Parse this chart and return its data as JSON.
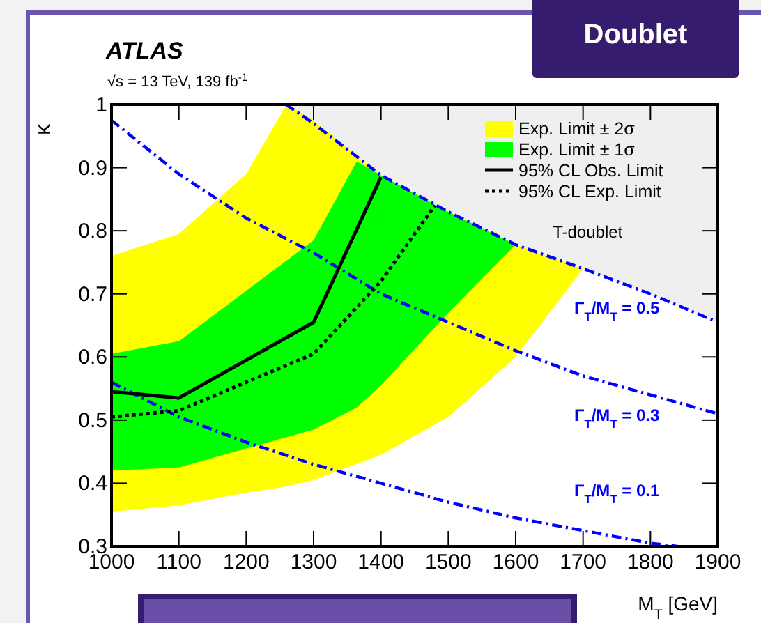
{
  "chart_data": {
    "type": "line",
    "title": "ATLAS",
    "subtitle": "√s = 13 TeV, 139 fb$^{-1}$",
    "xlabel": "M$_{T}$ [GeV]",
    "ylabel": "κ",
    "xlim": [
      1000,
      1900
    ],
    "ylim": [
      0.3,
      1
    ],
    "xticks": [
      1000,
      1100,
      1200,
      1300,
      1400,
      1500,
      1600,
      1700,
      1800,
      1900
    ],
    "yticks": [
      0.3,
      0.4,
      0.5,
      0.6,
      0.7,
      0.8,
      0.9,
      1
    ],
    "grid": false,
    "legend": "top right",
    "annotations": [
      "Doublet",
      "T-doublet",
      "Γ$_{T}$/M$_{T}$ = 0.5",
      "Γ$_{T}$/M$_{T}$ = 0.3",
      "Γ$_{T}$/M$_{T}$ = 0.1"
    ],
    "series": [
      {
        "color": "#efefef",
        "x": [
          1259,
          1300,
          1400,
          1500,
          1600,
          1700,
          1800,
          1900
        ],
        "values": [
          null,
          null,
          null,
          null,
          null,
          null,
          null,
          null
        ],
        "lower": [
          1,
          0.97,
          0.888,
          0.83,
          0.778,
          0.74,
          0.7,
          0.655
        ],
        "upper": [
          1,
          1,
          1,
          1,
          1,
          1,
          1,
          1
        ]
      },
      {
        "name": "Exp. Limit ± 2σ",
        "color": "#ffff00",
        "x": [
          1000,
          1100,
          1200,
          1260,
          1300,
          1400,
          1500,
          1600,
          1700
        ],
        "values": [
          null,
          null,
          null,
          null,
          null,
          null,
          null,
          null,
          null
        ],
        "lower": [
          0.355,
          0.365,
          0.385,
          0.395,
          0.405,
          0.445,
          0.505,
          0.6,
          0.74
        ],
        "upper": [
          0.76,
          0.795,
          0.89,
          1,
          0.975,
          0.888,
          0.83,
          0.778,
          0.74
        ]
      },
      {
        "name": "Exp. Limit ± 1σ",
        "color": "#00ff00",
        "x": [
          1000,
          1100,
          1200,
          1300,
          1364,
          1400,
          1500,
          1600
        ],
        "values": [
          null,
          null,
          null,
          null,
          null,
          null,
          null,
          null
        ],
        "lower": [
          0.42,
          0.425,
          0.455,
          0.485,
          0.52,
          0.555,
          0.67,
          0.778
        ],
        "upper": [
          0.605,
          0.625,
          0.705,
          0.785,
          0.91,
          0.888,
          0.83,
          0.778
        ]
      },
      {
        "color": "#0000ff",
        "line_style": "dashed",
        "x": [
          1259,
          1300,
          1400,
          1500,
          1600,
          1700,
          1800,
          1900
        ],
        "values": [
          1,
          0.97,
          0.888,
          0.83,
          0.778,
          0.74,
          0.7,
          0.655
        ]
      },
      {
        "color": "#0000ff",
        "line_style": "dashed",
        "x": [
          1000,
          1100,
          1200,
          1300,
          1400,
          1500,
          1600,
          1700,
          1800,
          1900
        ],
        "values": [
          0.975,
          0.89,
          0.82,
          0.765,
          0.7,
          0.655,
          0.61,
          0.57,
          0.54,
          0.51
        ]
      },
      {
        "color": "#0000ff",
        "line_style": "dashed",
        "x": [
          1000,
          1100,
          1200,
          1300,
          1400,
          1500,
          1600,
          1700,
          1800,
          1840
        ],
        "values": [
          0.56,
          0.505,
          0.465,
          0.43,
          0.4,
          0.37,
          0.345,
          0.325,
          0.305,
          0.3
        ]
      },
      {
        "name": "95% CL Obs. Limit",
        "color": "#000000",
        "line_style": "solid",
        "x": [
          1000,
          1100,
          1300,
          1400
        ],
        "values": [
          0.545,
          0.535,
          0.655,
          0.885
        ]
      },
      {
        "name": "95% CL Exp. Limit",
        "color": "#000000",
        "line_style": "dotted",
        "x": [
          1000,
          1100,
          1300,
          1400,
          1480
        ],
        "values": [
          0.505,
          0.515,
          0.605,
          0.72,
          0.84
        ]
      }
    ]
  }
}
